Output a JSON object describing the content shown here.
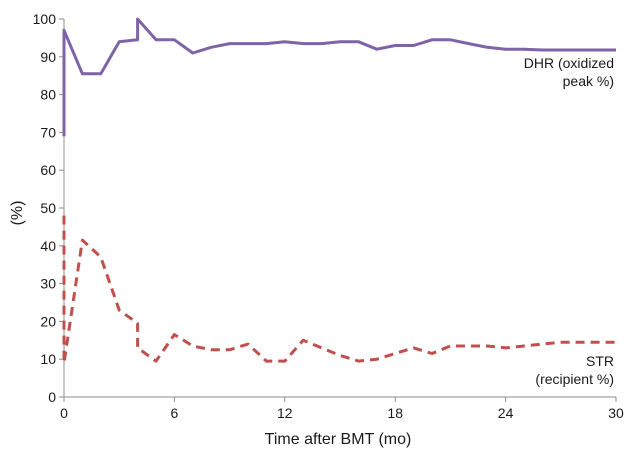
{
  "chart_data": {
    "type": "line",
    "title": "",
    "xlabel": "Time after BMT (mo)",
    "ylabel": "(%)",
    "xlim": [
      0,
      30
    ],
    "ylim": [
      0,
      100
    ],
    "xticks": [
      0,
      6,
      12,
      18,
      24,
      30
    ],
    "yticks": [
      0,
      10,
      20,
      30,
      40,
      50,
      60,
      70,
      80,
      90,
      100
    ],
    "grid": false,
    "legend": "none",
    "series": [
      {
        "name": "DHR (oxidized peak %)",
        "label_lines": [
          "DHR (oxidized",
          "peak %)"
        ],
        "color": "#7f63a8",
        "style": "solid",
        "x": [
          0,
          0,
          1,
          2,
          3,
          4,
          4,
          5,
          6,
          7,
          8,
          9,
          10,
          11,
          12,
          13,
          14,
          15,
          16,
          17,
          18,
          19,
          20,
          21,
          22,
          23,
          24,
          25,
          26,
          27,
          28,
          29,
          30
        ],
        "y": [
          69,
          97,
          85.5,
          85.5,
          94,
          94.5,
          100,
          94.5,
          94.5,
          91,
          92.5,
          93.5,
          93.5,
          93.5,
          94,
          93.5,
          93.5,
          94,
          94,
          92,
          93,
          93,
          94.5,
          94.5,
          93.5,
          92.5,
          92,
          92,
          91.8,
          91.8,
          91.8,
          91.8,
          91.8
        ]
      },
      {
        "name": "STR (recipient %)",
        "label_lines": [
          "STR",
          "(recipient %)"
        ],
        "color": "#c0504d",
        "style": "dashed",
        "x": [
          0,
          0,
          0,
          1,
          2,
          3,
          4,
          4,
          5,
          6,
          7,
          8,
          9,
          10,
          11,
          12,
          13,
          14,
          15,
          16,
          17,
          18,
          19,
          20,
          21,
          22,
          23,
          24,
          25,
          26,
          27,
          28,
          29,
          30
        ],
        "y": [
          48,
          28,
          9,
          41.5,
          37,
          23,
          19.5,
          13,
          9.5,
          16.5,
          13.5,
          12.5,
          12.5,
          14,
          9.5,
          9.5,
          15,
          13,
          11,
          9.5,
          10,
          11.5,
          13,
          11.5,
          13.5,
          13.5,
          13.5,
          13,
          13.5,
          14,
          14.5,
          14.5,
          14.5,
          14.5
        ]
      }
    ]
  }
}
